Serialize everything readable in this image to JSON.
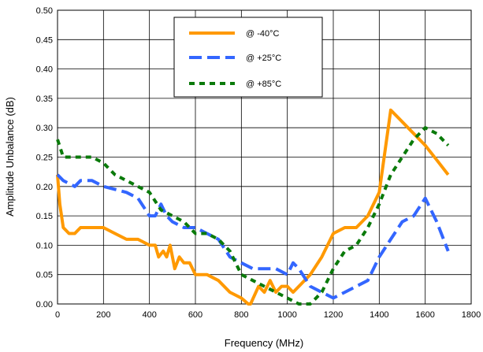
{
  "chart_data": {
    "type": "line",
    "title": "",
    "xlabel": "Frequency (MHz)",
    "ylabel": "Amplitude Unbalance (dB)",
    "xlim": [
      0,
      1800
    ],
    "ylim": [
      0,
      0.5
    ],
    "x_ticks": [
      "0",
      "200",
      "400",
      "600",
      "800",
      "1000",
      "1200",
      "1400",
      "1600",
      "1800"
    ],
    "y_ticks": [
      "0.00",
      "0.05",
      "0.10",
      "0.15",
      "0.20",
      "0.25",
      "0.30",
      "0.35",
      "0.40",
      "0.45",
      "0.50"
    ],
    "grid": true,
    "legend_position": "top-center",
    "series": [
      {
        "name": "@ -40°C",
        "color": "#FF9900",
        "dash": "solid",
        "points": [
          [
            0,
            0.22
          ],
          [
            10,
            0.17
          ],
          [
            25,
            0.13
          ],
          [
            50,
            0.12
          ],
          [
            75,
            0.12
          ],
          [
            100,
            0.13
          ],
          [
            150,
            0.13
          ],
          [
            200,
            0.13
          ],
          [
            250,
            0.12
          ],
          [
            300,
            0.11
          ],
          [
            350,
            0.11
          ],
          [
            400,
            0.1
          ],
          [
            425,
            0.1
          ],
          [
            440,
            0.08
          ],
          [
            460,
            0.09
          ],
          [
            475,
            0.08
          ],
          [
            490,
            0.1
          ],
          [
            510,
            0.06
          ],
          [
            530,
            0.08
          ],
          [
            550,
            0.07
          ],
          [
            575,
            0.07
          ],
          [
            600,
            0.05
          ],
          [
            650,
            0.05
          ],
          [
            700,
            0.04
          ],
          [
            750,
            0.02
          ],
          [
            800,
            0.01
          ],
          [
            830,
            0.0
          ],
          [
            840,
            0.0
          ],
          [
            875,
            0.03
          ],
          [
            900,
            0.02
          ],
          [
            925,
            0.04
          ],
          [
            950,
            0.02
          ],
          [
            975,
            0.03
          ],
          [
            1000,
            0.03
          ],
          [
            1025,
            0.02
          ],
          [
            1050,
            0.03
          ],
          [
            1075,
            0.04
          ],
          [
            1100,
            0.05
          ],
          [
            1150,
            0.08
          ],
          [
            1200,
            0.12
          ],
          [
            1250,
            0.13
          ],
          [
            1300,
            0.13
          ],
          [
            1350,
            0.15
          ],
          [
            1400,
            0.19
          ],
          [
            1450,
            0.33
          ],
          [
            1500,
            0.31
          ],
          [
            1550,
            0.29
          ],
          [
            1600,
            0.27
          ],
          [
            1650,
            0.245
          ],
          [
            1700,
            0.22
          ]
        ]
      },
      {
        "name": "@ +25°C",
        "color": "#3366FF",
        "dash": "longdash",
        "points": [
          [
            0,
            0.22
          ],
          [
            25,
            0.21
          ],
          [
            75,
            0.2
          ],
          [
            100,
            0.21
          ],
          [
            150,
            0.21
          ],
          [
            200,
            0.2
          ],
          [
            300,
            0.19
          ],
          [
            350,
            0.18
          ],
          [
            400,
            0.15
          ],
          [
            425,
            0.15
          ],
          [
            450,
            0.17
          ],
          [
            475,
            0.15
          ],
          [
            500,
            0.14
          ],
          [
            550,
            0.13
          ],
          [
            600,
            0.13
          ],
          [
            650,
            0.12
          ],
          [
            700,
            0.11
          ],
          [
            750,
            0.08
          ],
          [
            800,
            0.07
          ],
          [
            850,
            0.06
          ],
          [
            900,
            0.06
          ],
          [
            950,
            0.06
          ],
          [
            1000,
            0.05
          ],
          [
            1025,
            0.07
          ],
          [
            1050,
            0.06
          ],
          [
            1100,
            0.03
          ],
          [
            1150,
            0.02
          ],
          [
            1200,
            0.01
          ],
          [
            1250,
            0.02
          ],
          [
            1300,
            0.03
          ],
          [
            1350,
            0.04
          ],
          [
            1400,
            0.08
          ],
          [
            1450,
            0.11
          ],
          [
            1500,
            0.14
          ],
          [
            1550,
            0.15
          ],
          [
            1600,
            0.18
          ],
          [
            1650,
            0.14
          ],
          [
            1700,
            0.09
          ]
        ]
      },
      {
        "name": "@ +85°C",
        "color": "#0A7A0A",
        "dash": "shortdash",
        "points": [
          [
            0,
            0.28
          ],
          [
            25,
            0.25
          ],
          [
            100,
            0.25
          ],
          [
            150,
            0.25
          ],
          [
            200,
            0.24
          ],
          [
            250,
            0.22
          ],
          [
            300,
            0.21
          ],
          [
            350,
            0.2
          ],
          [
            400,
            0.19
          ],
          [
            450,
            0.16
          ],
          [
            500,
            0.15
          ],
          [
            550,
            0.14
          ],
          [
            600,
            0.12
          ],
          [
            650,
            0.12
          ],
          [
            700,
            0.11
          ],
          [
            750,
            0.09
          ],
          [
            800,
            0.05
          ],
          [
            850,
            0.04
          ],
          [
            900,
            0.03
          ],
          [
            950,
            0.02
          ],
          [
            1000,
            0.01
          ],
          [
            1050,
            0.0
          ],
          [
            1075,
            0.0
          ],
          [
            1100,
            0.0
          ],
          [
            1150,
            0.02
          ],
          [
            1200,
            0.06
          ],
          [
            1250,
            0.09
          ],
          [
            1300,
            0.1
          ],
          [
            1350,
            0.13
          ],
          [
            1400,
            0.17
          ],
          [
            1450,
            0.22
          ],
          [
            1500,
            0.25
          ],
          [
            1550,
            0.28
          ],
          [
            1600,
            0.3
          ],
          [
            1650,
            0.29
          ],
          [
            1700,
            0.27
          ]
        ]
      }
    ]
  }
}
